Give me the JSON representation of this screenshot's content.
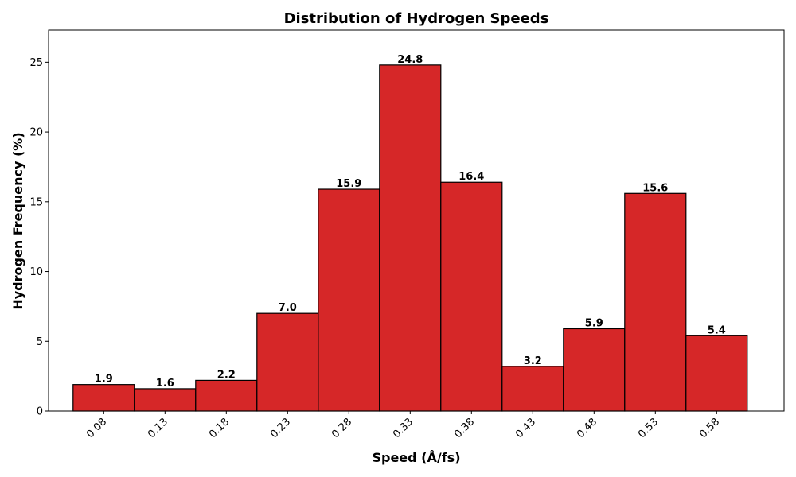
{
  "chart_data": {
    "type": "bar",
    "title": "Distribution of Hydrogen Speeds",
    "xlabel": "Speed (Å/fs)",
    "ylabel": "Hydrogen Frequency (%)",
    "categories": [
      "0.08",
      "0.13",
      "0.18",
      "0.23",
      "0.28",
      "0.33",
      "0.38",
      "0.43",
      "0.48",
      "0.53",
      "0.58"
    ],
    "x": [
      0.08,
      0.13,
      0.18,
      0.23,
      0.28,
      0.33,
      0.38,
      0.43,
      0.48,
      0.53,
      0.58
    ],
    "values": [
      1.9,
      1.6,
      2.2,
      7.0,
      15.9,
      24.8,
      16.4,
      3.2,
      5.9,
      15.6,
      5.4
    ],
    "value_labels": [
      "1.9",
      "1.6",
      "2.2",
      "7.0",
      "15.9",
      "24.8",
      "16.4",
      "3.2",
      "5.9",
      "15.6",
      "5.4"
    ],
    "bin_width": 0.05,
    "xlim": [
      0.035,
      0.635
    ],
    "ylim": [
      0,
      27.3
    ],
    "yticks": [
      0,
      5,
      10,
      15,
      20,
      25
    ],
    "ytick_labels": [
      "0",
      "5",
      "10",
      "15",
      "20",
      "25"
    ],
    "grid": false,
    "legend": "none",
    "colors": {
      "bar_fill": "#d62728",
      "bar_edge": "#000000",
      "axes": "#000000",
      "background": "#ffffff"
    }
  }
}
